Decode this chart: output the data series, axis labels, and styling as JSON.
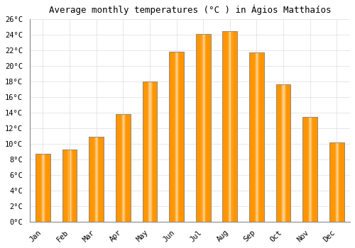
{
  "title": "Average monthly temperatures (°C ) in Ágios Matthaíos",
  "months": [
    "Jan",
    "Feb",
    "Mar",
    "Apr",
    "May",
    "Jun",
    "Jul",
    "Aug",
    "Sep",
    "Oct",
    "Nov",
    "Dec"
  ],
  "temperatures": [
    8.7,
    9.3,
    10.9,
    13.8,
    18.0,
    21.8,
    24.1,
    24.4,
    21.7,
    17.6,
    13.4,
    10.2
  ],
  "bar_color_center": "#FFB700",
  "bar_color_edge": "#FF9500",
  "bar_outline_color": "#888888",
  "ylim": [
    0,
    26
  ],
  "yticks": [
    0,
    2,
    4,
    6,
    8,
    10,
    12,
    14,
    16,
    18,
    20,
    22,
    24,
    26
  ],
  "background_color": "#FFFFFF",
  "grid_color": "#DDDDDD",
  "title_fontsize": 9,
  "tick_fontsize": 7.5,
  "font_family": "monospace",
  "bar_width": 0.55
}
